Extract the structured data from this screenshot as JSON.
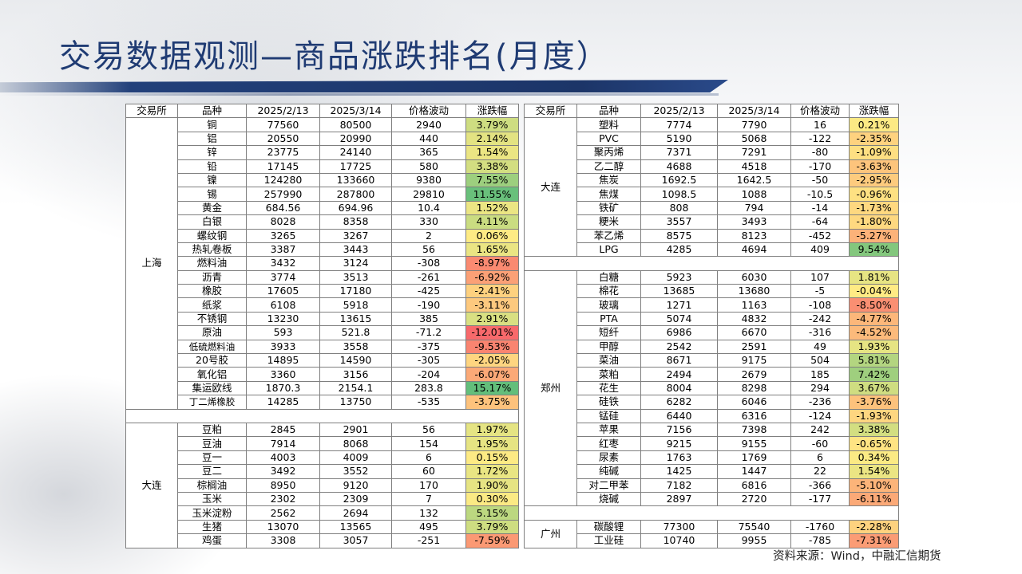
{
  "title": "交易数据观测—商品涨跌排名(月度）",
  "source": "资料来源：Wind，中融汇信期货",
  "headers": [
    "交易所",
    "品种",
    "2025/2/13",
    "2025/3/14",
    "价格波动",
    "涨跌幅"
  ],
  "left": {
    "groups": [
      {
        "exchange": "上海",
        "rows": [
          {
            "name": "铜",
            "a": "77560",
            "b": "80500",
            "d": "2940",
            "pct": "3.79%",
            "pctv": 3.79
          },
          {
            "name": "铝",
            "a": "20550",
            "b": "20990",
            "d": "440",
            "pct": "2.14%",
            "pctv": 2.14
          },
          {
            "name": "锌",
            "a": "23775",
            "b": "24140",
            "d": "365",
            "pct": "1.54%",
            "pctv": 1.54
          },
          {
            "name": "铅",
            "a": "17145",
            "b": "17725",
            "d": "580",
            "pct": "3.38%",
            "pctv": 3.38
          },
          {
            "name": "镍",
            "a": "124280",
            "b": "133660",
            "d": "9380",
            "pct": "7.55%",
            "pctv": 7.55
          },
          {
            "name": "锡",
            "a": "257990",
            "b": "287800",
            "d": "29810",
            "pct": "11.55%",
            "pctv": 11.55
          },
          {
            "name": "黄金",
            "a": "684.56",
            "b": "694.96",
            "d": "10.4",
            "pct": "1.52%",
            "pctv": 1.52
          },
          {
            "name": "白银",
            "a": "8028",
            "b": "8358",
            "d": "330",
            "pct": "4.11%",
            "pctv": 4.11
          },
          {
            "name": "螺纹钢",
            "a": "3265",
            "b": "3267",
            "d": "2",
            "pct": "0.06%",
            "pctv": 0.06
          },
          {
            "name": "热轧卷板",
            "a": "3387",
            "b": "3443",
            "d": "56",
            "pct": "1.65%",
            "pctv": 1.65
          },
          {
            "name": "燃料油",
            "a": "3432",
            "b": "3124",
            "d": "-308",
            "pct": "-8.97%",
            "pctv": -8.97
          },
          {
            "name": "沥青",
            "a": "3774",
            "b": "3513",
            "d": "-261",
            "pct": "-6.92%",
            "pctv": -6.92
          },
          {
            "name": "橡胶",
            "a": "17605",
            "b": "17180",
            "d": "-425",
            "pct": "-2.41%",
            "pctv": -2.41
          },
          {
            "name": "纸浆",
            "a": "6108",
            "b": "5918",
            "d": "-190",
            "pct": "-3.11%",
            "pctv": -3.11
          },
          {
            "name": "不锈钢",
            "a": "13230",
            "b": "13615",
            "d": "385",
            "pct": "2.91%",
            "pctv": 2.91
          },
          {
            "name": "原油",
            "a": "593",
            "b": "521.8",
            "d": "-71.2",
            "pct": "-12.01%",
            "pctv": -12.01
          },
          {
            "name": "低硫燃料油",
            "a": "3933",
            "b": "3558",
            "d": "-375",
            "pct": "-9.53%",
            "pctv": -9.53
          },
          {
            "name": "20号胶",
            "a": "14895",
            "b": "14590",
            "d": "-305",
            "pct": "-2.05%",
            "pctv": -2.05
          },
          {
            "name": "氧化铝",
            "a": "3360",
            "b": "3156",
            "d": "-204",
            "pct": "-6.07%",
            "pctv": -6.07
          },
          {
            "name": "集运欧线",
            "a": "1870.3",
            "b": "2154.1",
            "d": "283.8",
            "pct": "15.17%",
            "pctv": 15.17
          },
          {
            "name": "丁二烯橡胶",
            "a": "14285",
            "b": "13750",
            "d": "-535",
            "pct": "-3.75%",
            "pctv": -3.75
          }
        ]
      },
      {
        "exchange": "大连",
        "rows": [
          {
            "name": "豆粕",
            "a": "2845",
            "b": "2901",
            "d": "56",
            "pct": "1.97%",
            "pctv": 1.97
          },
          {
            "name": "豆油",
            "a": "7914",
            "b": "8068",
            "d": "154",
            "pct": "1.95%",
            "pctv": 1.95
          },
          {
            "name": "豆一",
            "a": "4003",
            "b": "4009",
            "d": "6",
            "pct": "0.15%",
            "pctv": 0.15
          },
          {
            "name": "豆二",
            "a": "3492",
            "b": "3552",
            "d": "60",
            "pct": "1.72%",
            "pctv": 1.72
          },
          {
            "name": "棕榈油",
            "a": "8950",
            "b": "9120",
            "d": "170",
            "pct": "1.90%",
            "pctv": 1.9
          },
          {
            "name": "玉米",
            "a": "2302",
            "b": "2309",
            "d": "7",
            "pct": "0.30%",
            "pctv": 0.3
          },
          {
            "name": "玉米淀粉",
            "a": "2562",
            "b": "2694",
            "d": "132",
            "pct": "5.15%",
            "pctv": 5.15
          },
          {
            "name": "生猪",
            "a": "13070",
            "b": "13565",
            "d": "495",
            "pct": "3.79%",
            "pctv": 3.79
          },
          {
            "name": "鸡蛋",
            "a": "3308",
            "b": "3057",
            "d": "-251",
            "pct": "-7.59%",
            "pctv": -7.59
          }
        ]
      }
    ]
  },
  "right": {
    "groups": [
      {
        "exchange": "大连",
        "rows": [
          {
            "name": "塑料",
            "a": "7774",
            "b": "7790",
            "d": "16",
            "pct": "0.21%",
            "pctv": 0.21
          },
          {
            "name": "PVC",
            "a": "5190",
            "b": "5068",
            "d": "-122",
            "pct": "-2.35%",
            "pctv": -2.35
          },
          {
            "name": "聚丙烯",
            "a": "7371",
            "b": "7291",
            "d": "-80",
            "pct": "-1.09%",
            "pctv": -1.09
          },
          {
            "name": "乙二醇",
            "a": "4688",
            "b": "4518",
            "d": "-170",
            "pct": "-3.63%",
            "pctv": -3.63
          },
          {
            "name": "焦炭",
            "a": "1692.5",
            "b": "1642.5",
            "d": "-50",
            "pct": "-2.95%",
            "pctv": -2.95
          },
          {
            "name": "焦煤",
            "a": "1098.5",
            "b": "1088",
            "d": "-10.5",
            "pct": "-0.96%",
            "pctv": -0.96
          },
          {
            "name": "铁矿",
            "a": "808",
            "b": "794",
            "d": "-14",
            "pct": "-1.73%",
            "pctv": -1.73
          },
          {
            "name": "粳米",
            "a": "3557",
            "b": "3493",
            "d": "-64",
            "pct": "-1.80%",
            "pctv": -1.8
          },
          {
            "name": "苯乙烯",
            "a": "8575",
            "b": "8123",
            "d": "-452",
            "pct": "-5.27%",
            "pctv": -5.27
          },
          {
            "name": "LPG",
            "a": "4285",
            "b": "4694",
            "d": "409",
            "pct": "9.54%",
            "pctv": 9.54
          }
        ]
      },
      {
        "exchange": "郑州",
        "rows": [
          {
            "name": "白糖",
            "a": "5923",
            "b": "6030",
            "d": "107",
            "pct": "1.81%",
            "pctv": 1.81
          },
          {
            "name": "棉花",
            "a": "13685",
            "b": "13680",
            "d": "-5",
            "pct": "-0.04%",
            "pctv": -0.04
          },
          {
            "name": "玻璃",
            "a": "1271",
            "b": "1163",
            "d": "-108",
            "pct": "-8.50%",
            "pctv": -8.5
          },
          {
            "name": "PTA",
            "a": "5074",
            "b": "4832",
            "d": "-242",
            "pct": "-4.77%",
            "pctv": -4.77
          },
          {
            "name": "短纤",
            "a": "6986",
            "b": "6670",
            "d": "-316",
            "pct": "-4.52%",
            "pctv": -4.52
          },
          {
            "name": "甲醇",
            "a": "2542",
            "b": "2591",
            "d": "49",
            "pct": "1.93%",
            "pctv": 1.93
          },
          {
            "name": "菜油",
            "a": "8671",
            "b": "9175",
            "d": "504",
            "pct": "5.81%",
            "pctv": 5.81
          },
          {
            "name": "菜粕",
            "a": "2494",
            "b": "2679",
            "d": "185",
            "pct": "7.42%",
            "pctv": 7.42
          },
          {
            "name": "花生",
            "a": "8004",
            "b": "8298",
            "d": "294",
            "pct": "3.67%",
            "pctv": 3.67
          },
          {
            "name": "硅铁",
            "a": "6282",
            "b": "6046",
            "d": "-236",
            "pct": "-3.76%",
            "pctv": -3.76
          },
          {
            "name": "锰硅",
            "a": "6440",
            "b": "6316",
            "d": "-124",
            "pct": "-1.93%",
            "pctv": -1.93
          },
          {
            "name": "苹果",
            "a": "7156",
            "b": "7398",
            "d": "242",
            "pct": "3.38%",
            "pctv": 3.38
          },
          {
            "name": "红枣",
            "a": "9215",
            "b": "9155",
            "d": "-60",
            "pct": "-0.65%",
            "pctv": -0.65
          },
          {
            "name": "尿素",
            "a": "1763",
            "b": "1769",
            "d": "6",
            "pct": "0.34%",
            "pctv": 0.34
          },
          {
            "name": "纯碱",
            "a": "1425",
            "b": "1447",
            "d": "22",
            "pct": "1.54%",
            "pctv": 1.54
          },
          {
            "name": "对二甲苯",
            "a": "7182",
            "b": "6816",
            "d": "-366",
            "pct": "-5.10%",
            "pctv": -5.1
          },
          {
            "name": "烧碱",
            "a": "2897",
            "b": "2720",
            "d": "-177",
            "pct": "-6.11%",
            "pctv": -6.11
          }
        ]
      },
      {
        "exchange": "广州",
        "rows": [
          {
            "name": "碳酸锂",
            "a": "77300",
            "b": "75540",
            "d": "-1760",
            "pct": "-2.28%",
            "pctv": -2.28
          },
          {
            "name": "工业硅",
            "a": "10740",
            "b": "9955",
            "d": "-785",
            "pct": "-7.31%",
            "pctv": -7.31
          }
        ]
      }
    ]
  }
}
